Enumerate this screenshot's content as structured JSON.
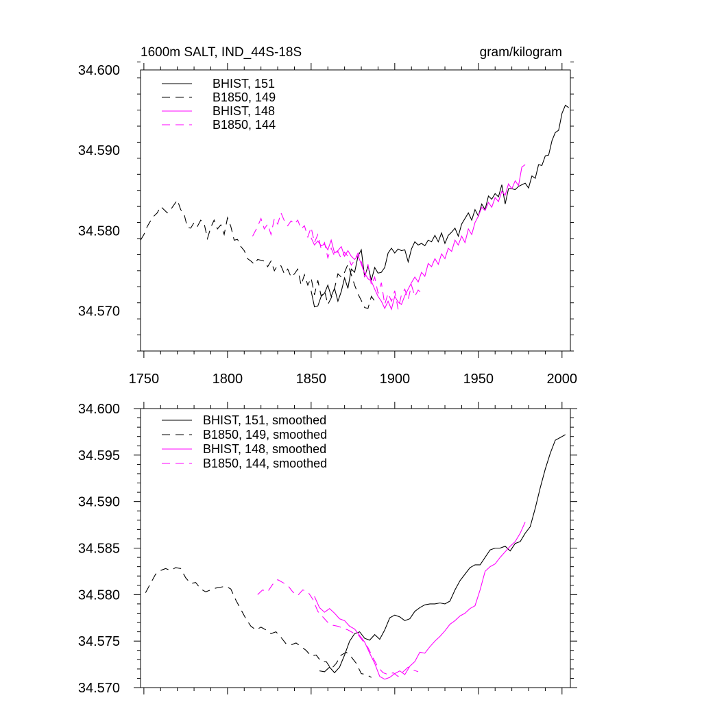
{
  "figure": {
    "left_title": "1600m SALT, IND_44S-18S",
    "right_title": "gram/kilogram"
  },
  "colors": {
    "black": "#000000",
    "magenta": "#ff00ff"
  },
  "chart_data": [
    {
      "type": "line",
      "title": "1600m SALT, IND_44S-18S",
      "units": "gram/kilogram",
      "xlim": [
        1748,
        2005
      ],
      "ylim": [
        34.565,
        34.6
      ],
      "x_ticks": [
        1750,
        1800,
        1850,
        1900,
        1950,
        2000
      ],
      "x_tick_labels": [
        "1750",
        "1800",
        "1850",
        "1900",
        "1950",
        "2000"
      ],
      "y_ticks": [
        34.57,
        34.58,
        34.59,
        34.6
      ],
      "y_tick_labels": [
        "34.570",
        "34.580",
        "34.590",
        "34.600"
      ],
      "legend_position": "top-left",
      "series": [
        {
          "name": "BHIST, 151",
          "color": "#000000",
          "dash": "solid",
          "x": [
            1850,
            1852,
            1854,
            1856,
            1858,
            1860,
            1862,
            1864,
            1866,
            1868,
            1870,
            1872,
            1874,
            1876,
            1878,
            1880,
            1882,
            1884,
            1886,
            1888,
            1890,
            1892,
            1894,
            1896,
            1898,
            1900,
            1902,
            1904,
            1906,
            1908,
            1910,
            1912,
            1914,
            1916,
            1918,
            1920,
            1922,
            1924,
            1926,
            1928,
            1930,
            1932,
            1934,
            1936,
            1938,
            1940,
            1942,
            1944,
            1946,
            1948,
            1950,
            1952,
            1954,
            1956,
            1958,
            1960,
            1962,
            1964,
            1966,
            1968,
            1970,
            1972,
            1974,
            1976,
            1978,
            1980,
            1982,
            1984,
            1986,
            1988,
            1990,
            1992,
            1994,
            1996,
            1998,
            2000,
            2002,
            2004
          ],
          "y": [
            34.5725,
            34.5705,
            34.5706,
            34.5718,
            34.5722,
            34.5732,
            34.5718,
            34.5728,
            34.5712,
            34.5724,
            34.5741,
            34.5728,
            34.5752,
            34.5748,
            34.5768,
            34.5776,
            34.5742,
            34.5756,
            34.5738,
            34.5754,
            34.5747,
            34.5748,
            34.5754,
            34.5772,
            34.5778,
            34.5772,
            34.5777,
            34.5775,
            34.5776,
            34.5761,
            34.5777,
            34.5786,
            34.5782,
            34.5784,
            34.5781,
            34.5788,
            34.5786,
            34.5794,
            34.5786,
            34.5797,
            34.5784,
            34.5794,
            34.5798,
            34.5803,
            34.5793,
            34.5808,
            34.5815,
            34.5822,
            34.5813,
            34.5826,
            34.5818,
            34.5833,
            34.5826,
            34.5843,
            34.5839,
            34.5846,
            34.5842,
            34.5857,
            34.5833,
            34.5852,
            34.5852,
            34.5851,
            34.5855,
            34.5857,
            34.5859,
            34.5853,
            34.5868,
            34.5865,
            34.5882,
            34.5881,
            34.5893,
            34.5894,
            34.5912,
            34.5922,
            34.5925,
            34.5946,
            34.5956,
            34.5953
          ]
        },
        {
          "name": "B1850, 149",
          "color": "#000000",
          "dash": "dashed",
          "x": [
            1748,
            1750,
            1752,
            1754,
            1756,
            1758,
            1760,
            1762,
            1764,
            1766,
            1768,
            1770,
            1772,
            1774,
            1776,
            1778,
            1780,
            1782,
            1784,
            1786,
            1788,
            1790,
            1792,
            1794,
            1796,
            1798,
            1800,
            1802,
            1804,
            1806,
            1808,
            1810,
            1812,
            1814,
            1816,
            1818,
            1820,
            1822,
            1824,
            1826,
            1828,
            1830,
            1832,
            1834,
            1836,
            1838,
            1840,
            1842,
            1844,
            1846,
            1848,
            1850,
            1852,
            1854,
            1856,
            1858,
            1860,
            1862,
            1864,
            1866,
            1868,
            1870,
            1872,
            1874,
            1876,
            1878,
            1880,
            1882,
            1884,
            1886,
            1888,
            1890
          ],
          "y": [
            34.5788,
            34.5795,
            34.5805,
            34.5812,
            34.5818,
            34.5822,
            34.583,
            34.5826,
            34.5822,
            34.5826,
            34.5832,
            34.5838,
            34.5826,
            34.5821,
            34.5804,
            34.5803,
            34.581,
            34.5805,
            34.5813,
            34.5809,
            34.579,
            34.5804,
            34.5813,
            34.5802,
            34.5807,
            34.5795,
            34.5816,
            34.5805,
            34.5788,
            34.5789,
            34.578,
            34.5775,
            34.5765,
            34.5762,
            34.5758,
            34.5764,
            34.5763,
            34.5762,
            34.5755,
            34.5762,
            34.575,
            34.5757,
            34.5756,
            34.5746,
            34.5752,
            34.5742,
            34.5746,
            34.5752,
            34.5732,
            34.5745,
            34.5732,
            34.5741,
            34.572,
            34.5738,
            34.5718,
            34.5725,
            34.5708,
            34.5716,
            34.5728,
            34.5746,
            34.5742,
            34.5748,
            34.5758,
            34.5745,
            34.5732,
            34.5721,
            34.5713,
            34.5704,
            34.5703,
            34.5718,
            34.5712,
            34.5709
          ]
        },
        {
          "name": "BHIST, 148",
          "color": "#ff00ff",
          "dash": "solid",
          "x": [
            1850,
            1852,
            1854,
            1856,
            1858,
            1860,
            1862,
            1864,
            1866,
            1868,
            1870,
            1872,
            1874,
            1876,
            1878,
            1880,
            1882,
            1884,
            1886,
            1888,
            1890,
            1892,
            1894,
            1896,
            1898,
            1900,
            1902,
            1904,
            1906,
            1908,
            1910,
            1912,
            1914,
            1916,
            1918,
            1920,
            1922,
            1924,
            1926,
            1928,
            1930,
            1932,
            1934,
            1936,
            1938,
            1940,
            1942,
            1944,
            1946,
            1948,
            1950,
            1952,
            1954,
            1956,
            1958,
            1960,
            1962,
            1964,
            1966,
            1968,
            1970,
            1972,
            1974,
            1976,
            1978
          ],
          "y": [
            34.5791,
            34.5782,
            34.5787,
            34.5781,
            34.5783,
            34.5776,
            34.5788,
            34.5772,
            34.5775,
            34.578,
            34.5768,
            34.5775,
            34.5768,
            34.5764,
            34.5769,
            34.5758,
            34.5747,
            34.574,
            34.5737,
            34.5727,
            34.5718,
            34.5712,
            34.5703,
            34.5712,
            34.5702,
            34.5718,
            34.5711,
            34.5708,
            34.5719,
            34.5727,
            34.5735,
            34.5742,
            34.5736,
            34.5748,
            34.5743,
            34.5759,
            34.5755,
            34.5765,
            34.5758,
            34.5771,
            34.5765,
            34.5778,
            34.5774,
            34.5788,
            34.5782,
            34.5793,
            34.5785,
            34.5802,
            34.5795,
            34.581,
            34.5818,
            34.5829,
            34.5825,
            34.5835,
            34.5829,
            34.5841,
            34.5836,
            34.5849,
            34.5844,
            34.5858,
            34.5852,
            34.5862,
            34.5856,
            34.5879,
            34.5882
          ]
        },
        {
          "name": "B1850, 144",
          "color": "#ff00ff",
          "dash": "dashed",
          "x": [
            1815,
            1818,
            1820,
            1822,
            1824,
            1826,
            1828,
            1830,
            1832,
            1834,
            1836,
            1838,
            1840,
            1842,
            1844,
            1846,
            1848,
            1850,
            1852,
            1854,
            1856,
            1858,
            1860,
            1862,
            1864,
            1866,
            1868,
            1870,
            1872,
            1874,
            1876,
            1878,
            1880,
            1882,
            1884,
            1886,
            1888,
            1890,
            1892,
            1894,
            1896,
            1898,
            1900,
            1902,
            1904,
            1906,
            1908,
            1910,
            1912,
            1914,
            1916
          ],
          "y": [
            34.5793,
            34.5805,
            34.5815,
            34.5802,
            34.5808,
            34.5795,
            34.5815,
            34.5808,
            34.5822,
            34.5812,
            34.5806,
            34.5812,
            34.5808,
            34.5813,
            34.5802,
            34.5806,
            34.5792,
            34.5804,
            34.5785,
            34.5795,
            34.5777,
            34.5785,
            34.5766,
            34.5778,
            34.5768,
            34.5774,
            34.5765,
            34.5773,
            34.5768,
            34.5757,
            34.5763,
            34.5772,
            34.5762,
            34.5742,
            34.5758,
            34.5732,
            34.5742,
            34.5722,
            34.5735,
            34.5708,
            34.5722,
            34.5712,
            34.5725,
            34.5702,
            34.572,
            34.5727,
            34.5714,
            34.5732,
            34.5718,
            34.5726,
            34.5722
          ]
        }
      ]
    },
    {
      "type": "line",
      "xlim": [
        1748,
        2005
      ],
      "ylim": [
        34.57,
        34.6
      ],
      "x_ticks": [
        1750,
        1800,
        1850,
        1900,
        1950,
        2000
      ],
      "y_ticks": [
        34.57,
        34.575,
        34.58,
        34.585,
        34.59,
        34.595,
        34.6
      ],
      "y_tick_labels": [
        "34.570",
        "34.575",
        "34.580",
        "34.585",
        "34.590",
        "34.595",
        "34.600"
      ],
      "legend_position": "top-left",
      "series": [
        {
          "name": "BHIST, 151, smoothed",
          "color": "#000000",
          "dash": "solid",
          "x": [
            1855,
            1858,
            1861,
            1864,
            1867,
            1870,
            1873,
            1876,
            1879,
            1882,
            1885,
            1888,
            1891,
            1894,
            1897,
            1900,
            1903,
            1906,
            1909,
            1912,
            1915,
            1918,
            1921,
            1924,
            1927,
            1930,
            1933,
            1936,
            1939,
            1942,
            1945,
            1948,
            1951,
            1954,
            1957,
            1960,
            1963,
            1966,
            1969,
            1972,
            1975,
            1978,
            1981,
            1984,
            1987,
            1990,
            1993,
            1996,
            1999,
            2002
          ],
          "y": [
            34.5718,
            34.5717,
            34.5722,
            34.5716,
            34.5722,
            34.5735,
            34.575,
            34.5758,
            34.576,
            34.5753,
            34.5751,
            34.5757,
            34.5752,
            34.5762,
            34.5775,
            34.5778,
            34.5776,
            34.5772,
            34.5774,
            34.5782,
            34.5786,
            34.5789,
            34.579,
            34.579,
            34.5791,
            34.579,
            34.5793,
            34.5805,
            34.5815,
            34.5822,
            34.5829,
            34.5832,
            34.5832,
            34.584,
            34.5848,
            34.585,
            34.585,
            34.5852,
            34.5847,
            34.5855,
            34.5857,
            34.5866,
            34.5873,
            34.5893,
            34.5915,
            34.5935,
            34.5952,
            34.5966,
            34.5969,
            34.5972
          ]
        },
        {
          "name": "B1850, 149, smoothed",
          "color": "#000000",
          "dash": "dashed",
          "x": [
            1751,
            1754,
            1757,
            1760,
            1763,
            1766,
            1769,
            1772,
            1775,
            1778,
            1781,
            1784,
            1787,
            1790,
            1793,
            1796,
            1799,
            1802,
            1805,
            1808,
            1811,
            1814,
            1817,
            1820,
            1823,
            1826,
            1829,
            1832,
            1835,
            1838,
            1841,
            1844,
            1847,
            1850,
            1853,
            1856,
            1859,
            1862,
            1865,
            1868,
            1871,
            1874,
            1877,
            1880,
            1883,
            1886
          ],
          "y": [
            34.5802,
            34.5812,
            34.5822,
            34.5826,
            34.5828,
            34.5826,
            34.5829,
            34.5828,
            34.5818,
            34.5812,
            34.5813,
            34.5806,
            34.5803,
            34.5805,
            34.5807,
            34.5808,
            34.5809,
            34.5806,
            34.5794,
            34.5784,
            34.5774,
            34.5766,
            34.5762,
            34.5765,
            34.5762,
            34.5758,
            34.576,
            34.5754,
            34.5747,
            34.5746,
            34.5748,
            34.5744,
            34.574,
            34.5734,
            34.5735,
            34.5728,
            34.5728,
            34.572,
            34.5726,
            34.5735,
            34.5738,
            34.5733,
            34.5726,
            34.5715,
            34.5714,
            34.5711
          ]
        },
        {
          "name": "BHIST, 148, smoothed",
          "color": "#ff00ff",
          "dash": "solid",
          "x": [
            1852,
            1855,
            1858,
            1861,
            1864,
            1867,
            1870,
            1873,
            1876,
            1879,
            1882,
            1885,
            1888,
            1891,
            1894,
            1897,
            1900,
            1903,
            1906,
            1909,
            1912,
            1915,
            1918,
            1921,
            1924,
            1927,
            1930,
            1933,
            1936,
            1939,
            1942,
            1945,
            1948,
            1951,
            1954,
            1957,
            1960,
            1963,
            1966,
            1969,
            1972,
            1975,
            1978
          ],
          "y": [
            34.5798,
            34.5786,
            34.5781,
            34.5785,
            34.578,
            34.5774,
            34.5772,
            34.5766,
            34.5763,
            34.5756,
            34.5749,
            34.5737,
            34.5726,
            34.5712,
            34.5709,
            34.5711,
            34.5715,
            34.5718,
            34.5714,
            34.5723,
            34.5728,
            34.5738,
            34.5737,
            34.5744,
            34.575,
            34.5755,
            34.5761,
            34.5768,
            34.5772,
            34.5777,
            34.578,
            34.5785,
            34.5788,
            34.5805,
            34.5825,
            34.583,
            34.5833,
            34.584,
            34.5846,
            34.5852,
            34.5857,
            34.5866,
            34.5878
          ]
        },
        {
          "name": "B1850, 144, smoothed",
          "color": "#ff00ff",
          "dash": "dashed",
          "x": [
            1818,
            1821,
            1824,
            1827,
            1830,
            1833,
            1836,
            1839,
            1842,
            1845,
            1848,
            1851,
            1854,
            1857,
            1860,
            1863,
            1866,
            1869,
            1872,
            1875,
            1878,
            1881,
            1884,
            1887,
            1890,
            1893,
            1896,
            1899,
            1902,
            1905,
            1908,
            1911,
            1914
          ],
          "y": [
            34.58,
            34.5805,
            34.5803,
            34.5811,
            34.5816,
            34.5813,
            34.581,
            34.5803,
            34.5799,
            34.5805,
            34.5803,
            34.5795,
            34.5782,
            34.5776,
            34.577,
            34.5767,
            34.5766,
            34.5764,
            34.5762,
            34.5759,
            34.5757,
            34.575,
            34.5743,
            34.5732,
            34.5722,
            34.5716,
            34.5714,
            34.5716,
            34.5712,
            34.5717,
            34.5722,
            34.5719,
            34.5717
          ]
        }
      ]
    }
  ]
}
